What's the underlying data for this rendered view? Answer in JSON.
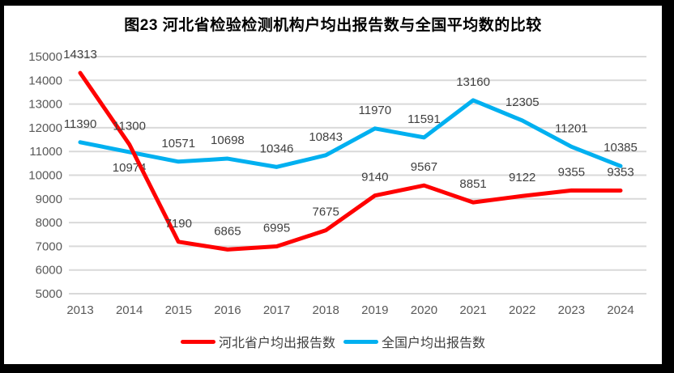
{
  "chart_data": {
    "type": "line",
    "title": "图23  河北省检验检测机构户均出报告数与全国平均数的比较",
    "categories": [
      "2013",
      "2014",
      "2015",
      "2016",
      "2017",
      "2018",
      "2019",
      "2020",
      "2021",
      "2022",
      "2023",
      "2024"
    ],
    "series": [
      {
        "name": "河北省户均出报告数",
        "color": "#FF0000",
        "values": [
          14313,
          11300,
          7190,
          6865,
          6995,
          7675,
          9140,
          9567,
          8851,
          9122,
          9355,
          9353
        ],
        "labels_below": []
      },
      {
        "name": "全国户均出报告数",
        "color": "#00B0F0",
        "values": [
          11390,
          10974,
          10571,
          10698,
          10346,
          10843,
          11970,
          11591,
          13160,
          12305,
          11201,
          10385
        ],
        "labels_below": [
          1
        ]
      }
    ],
    "ylim": [
      5000,
      15000
    ],
    "ytick_step": 1000,
    "xlabel": "",
    "ylabel": "",
    "grid": true,
    "data_labels": true,
    "legend_position": "bottom",
    "colors": {
      "gridline": "#D9D9D9",
      "axis_text": "#595959",
      "data_label": "#404040",
      "title_text": "#000000",
      "background": "#FFFFFF",
      "frame": "#000000"
    }
  }
}
